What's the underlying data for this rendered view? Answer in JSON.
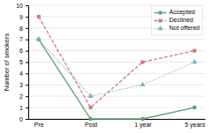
{
  "chart_data": {
    "type": "line",
    "categories": [
      "Pre",
      "Post",
      "1 year",
      "5 years"
    ],
    "series": [
      {
        "name": "Accepted",
        "values": [
          7,
          0,
          0,
          1
        ],
        "color": "#5a9e6f",
        "line_style": "solid",
        "marker": "circle"
      },
      {
        "name": "Declined",
        "values": [
          9,
          1,
          5,
          6
        ],
        "color": "#cc7788",
        "line_style": "dashed",
        "marker": "square"
      },
      {
        "name": "Not offered",
        "values": [
          7,
          2,
          3,
          5
        ],
        "color": "#7aafc0",
        "line_style": "dotted",
        "marker": "triangle"
      }
    ],
    "y_label": "Number of smokers",
    "ylim": [
      0,
      10
    ],
    "yticks": [
      0,
      1,
      2,
      3,
      4,
      5,
      6,
      7,
      8,
      9,
      10
    ],
    "grid": true,
    "legend": "upper right"
  }
}
